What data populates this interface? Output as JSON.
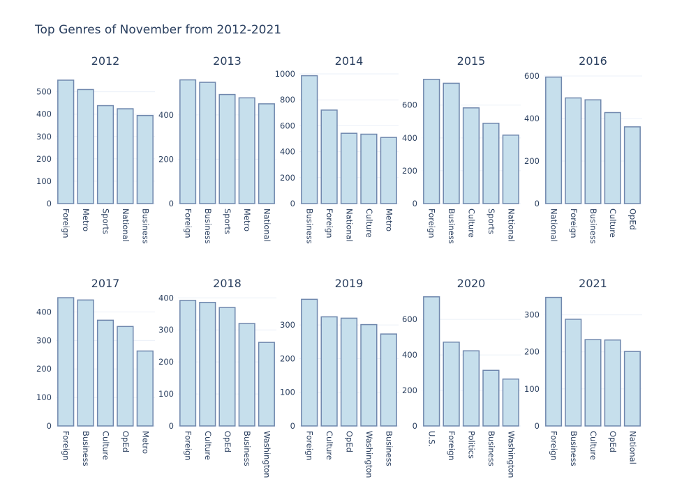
{
  "chart_data": {
    "type": "bar",
    "title": "Top Genres of November from 2012-2021",
    "grid": true,
    "legend": "none",
    "colors": {
      "bar_fill": "#c6dfec",
      "bar_stroke": "#6f87ad",
      "text": "#2a3f5f",
      "grid": "#ebf0f8"
    },
    "subplots": [
      {
        "title": "2012",
        "categories": [
          "Foreign",
          "Metro",
          "Sports",
          "National",
          "Business"
        ],
        "values": [
          552,
          510,
          438,
          424,
          394
        ],
        "ylim": [
          0,
          580
        ],
        "yticks": [
          0,
          100,
          200,
          300,
          400,
          500
        ]
      },
      {
        "title": "2013",
        "categories": [
          "Foreign",
          "Business",
          "Sports",
          "Metro",
          "National"
        ],
        "values": [
          558,
          547,
          492,
          477,
          450
        ],
        "ylim": [
          0,
          585
        ],
        "yticks": [
          0,
          200,
          400
        ]
      },
      {
        "title": "2014",
        "categories": [
          "Business",
          "Foreign",
          "National",
          "Culture",
          "Metro"
        ],
        "values": [
          986,
          721,
          542,
          535,
          510
        ],
        "ylim": [
          0,
          1000
        ],
        "yticks": [
          0,
          200,
          400,
          600,
          800,
          1000
        ]
      },
      {
        "title": "2015",
        "categories": [
          "Foreign",
          "Business",
          "Culture",
          "Sports",
          "National"
        ],
        "values": [
          757,
          733,
          583,
          489,
          417
        ],
        "ylim": [
          0,
          790
        ],
        "yticks": [
          0,
          200,
          400,
          600
        ]
      },
      {
        "title": "2016",
        "categories": [
          "National",
          "Foreign",
          "Business",
          "Culture",
          "OpEd"
        ],
        "values": [
          595,
          497,
          488,
          428,
          361
        ],
        "ylim": [
          0,
          610
        ],
        "yticks": [
          0,
          200,
          400,
          600
        ]
      },
      {
        "title": "2017",
        "categories": [
          "Foreign",
          "Business",
          "Culture",
          "OpEd",
          "Metro"
        ],
        "values": [
          450,
          442,
          371,
          349,
          263
        ],
        "ylim": [
          0,
          455
        ],
        "yticks": [
          0,
          100,
          200,
          300,
          400
        ]
      },
      {
        "title": "2018",
        "categories": [
          "Foreign",
          "Culture",
          "OpEd",
          "Business",
          "Washington"
        ],
        "values": [
          392,
          386,
          370,
          320,
          261
        ],
        "ylim": [
          0,
          405
        ],
        "yticks": [
          0,
          100,
          200,
          300,
          400
        ]
      },
      {
        "title": "2019",
        "categories": [
          "Foreign",
          "Culture",
          "OpEd",
          "Washington",
          "Business"
        ],
        "values": [
          376,
          324,
          320,
          301,
          273
        ],
        "ylim": [
          0,
          385
        ],
        "yticks": [
          0,
          100,
          200,
          300
        ]
      },
      {
        "title": "2020",
        "categories": [
          "U.S.",
          "Foreign",
          "Politics",
          "Business",
          "Washington"
        ],
        "values": [
          727,
          472,
          423,
          313,
          264
        ],
        "ylim": [
          0,
          730
        ],
        "yticks": [
          0,
          200,
          400,
          600
        ]
      },
      {
        "title": "2021",
        "categories": [
          "Foreign",
          "Business",
          "Culture",
          "OpEd",
          "National"
        ],
        "values": [
          347,
          288,
          233,
          232,
          201
        ],
        "ylim": [
          0,
          350
        ],
        "yticks": [
          0,
          100,
          200,
          300
        ]
      }
    ]
  }
}
